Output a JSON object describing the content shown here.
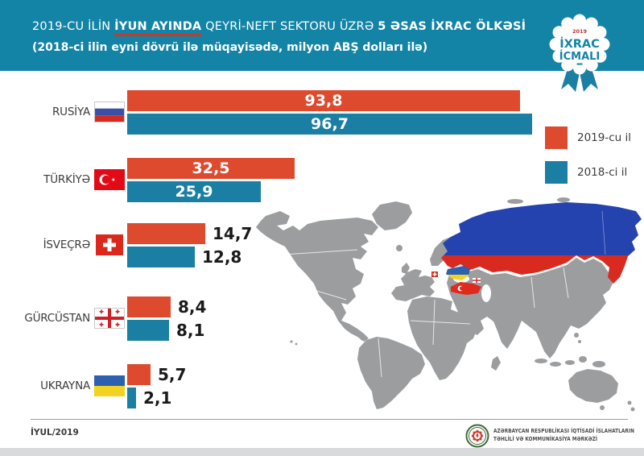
{
  "header": {
    "title_part1": "2019-CU İLİN",
    "title_highlight": "İYUN AYINDA",
    "title_part2": "QEYRİ-NEFT SEKTORU ÜZRƏ",
    "title_part3": "5 ƏSAS İXRAC ÖLKƏSİ",
    "subtitle": "(2018-ci ilin eyni dövrü ilə müqayisədə, milyon ABŞ dolları ilə)",
    "background": "#1384A6",
    "badge": {
      "year": "2019",
      "line1": "İXRAC",
      "line2": "İCMALI"
    }
  },
  "legend": [
    {
      "label": "2019-cu il",
      "color": "#DD4A2E"
    },
    {
      "label": "2018-ci il",
      "color": "#1B7FA4"
    }
  ],
  "chart_data": {
    "type": "bar",
    "orientation": "horizontal",
    "title": "2019-cu ilin iyun ayında qeyri-neft sektoru üzrə 5 əsas ixrac ölkəsi",
    "subtitle": "(2018-ci ilin eyni dövrü ilə müqayisədə, milyon ABŞ dolları ilə)",
    "unit": "milyon ABŞ dolları",
    "categories": [
      "RUSİYA",
      "TÜRKİYƏ",
      "İSVEÇRƏ",
      "GÜRCÜSTAN",
      "UKRAYNA"
    ],
    "series": [
      {
        "name": "2019-cu il",
        "color": "#DD4A2E",
        "values": [
          93.8,
          32.5,
          14.7,
          8.4,
          5.7
        ]
      },
      {
        "name": "2018-ci il",
        "color": "#1B7FA4",
        "values": [
          96.7,
          25.9,
          12.8,
          8.1,
          2.1
        ]
      }
    ],
    "value_labels": [
      [
        "93,8",
        "32,5",
        "14,7",
        "8,4",
        "5,7"
      ],
      [
        "96,7",
        "25,9",
        "12,8",
        "8,1",
        "2,1"
      ]
    ],
    "label_inside": [
      true,
      true,
      false,
      false,
      false
    ],
    "flags": [
      "russia",
      "turkey",
      "switzerland",
      "georgia",
      "ukraine"
    ],
    "legend_position": "right",
    "grid": false,
    "xlim": [
      0,
      100
    ]
  },
  "map": {
    "highlighted": [
      "Rusiya",
      "Türkiyə",
      "Ukrayna",
      "İsveçrə",
      "Gürcüstan"
    ],
    "colors": {
      "gray": "#9B9D9F",
      "russia_blue": "#2443AE",
      "russia_red": "#D92A1F",
      "ukraine_blue": "#2E60B0",
      "ukraine_yellow": "#F2D321",
      "turkey_red": "#E02A1E",
      "switzerland_red": "#E02A1E",
      "georgia_red": "#D11F26"
    }
  },
  "footer": {
    "date": "İYUL/2019",
    "org_line1": "AZƏRBAYCAN RESPUBLİKASI İQTİSADİ İSLAHATLARIN",
    "org_line2": "TƏHLİLİ VƏ KOMMUNİKASİYA MƏRKƏZİ"
  },
  "colors": {
    "strip": "#D8DADB",
    "bar_red": "#DD4A2E",
    "bar_teal": "#1B7FA4",
    "header_teal": "#1384A6"
  }
}
